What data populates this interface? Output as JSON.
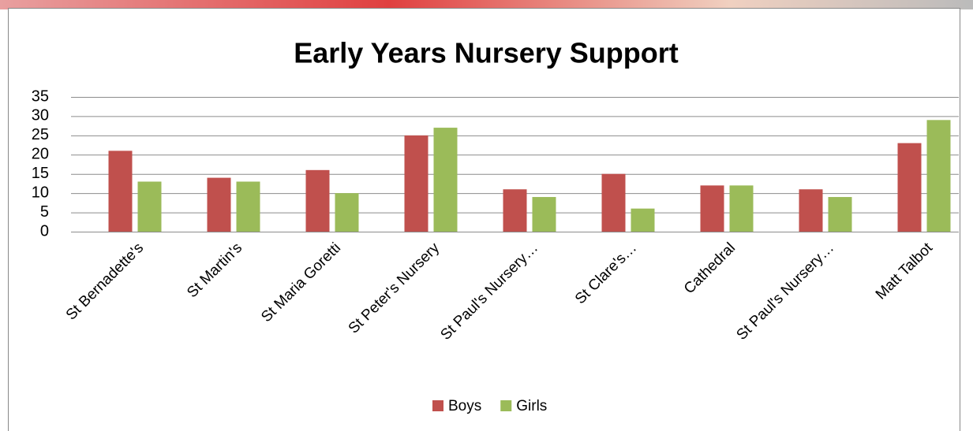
{
  "chart_data": {
    "type": "bar",
    "title": "Early Years Nursery Support",
    "categories": [
      "St Bernadette's",
      "St Martin's",
      "St Maria Goretti",
      "St Peter's Nursery",
      "St Paul's Nursery…",
      "St Clare's…",
      "Cathedral",
      "St Paul's Nursery…",
      "Matt Talbot"
    ],
    "series": [
      {
        "name": "Boys",
        "color": "#c0504d",
        "values": [
          21,
          14,
          16,
          25,
          11,
          15,
          12,
          11,
          23
        ]
      },
      {
        "name": "Girls",
        "color": "#9bbb59",
        "values": [
          13,
          13,
          10,
          27,
          9,
          6,
          12,
          9,
          29
        ]
      }
    ],
    "ylim": [
      0,
      35
    ],
    "yticks": [
      0,
      5,
      10,
      15,
      20,
      25,
      30,
      35
    ],
    "grid": true,
    "legend": "bottom"
  }
}
